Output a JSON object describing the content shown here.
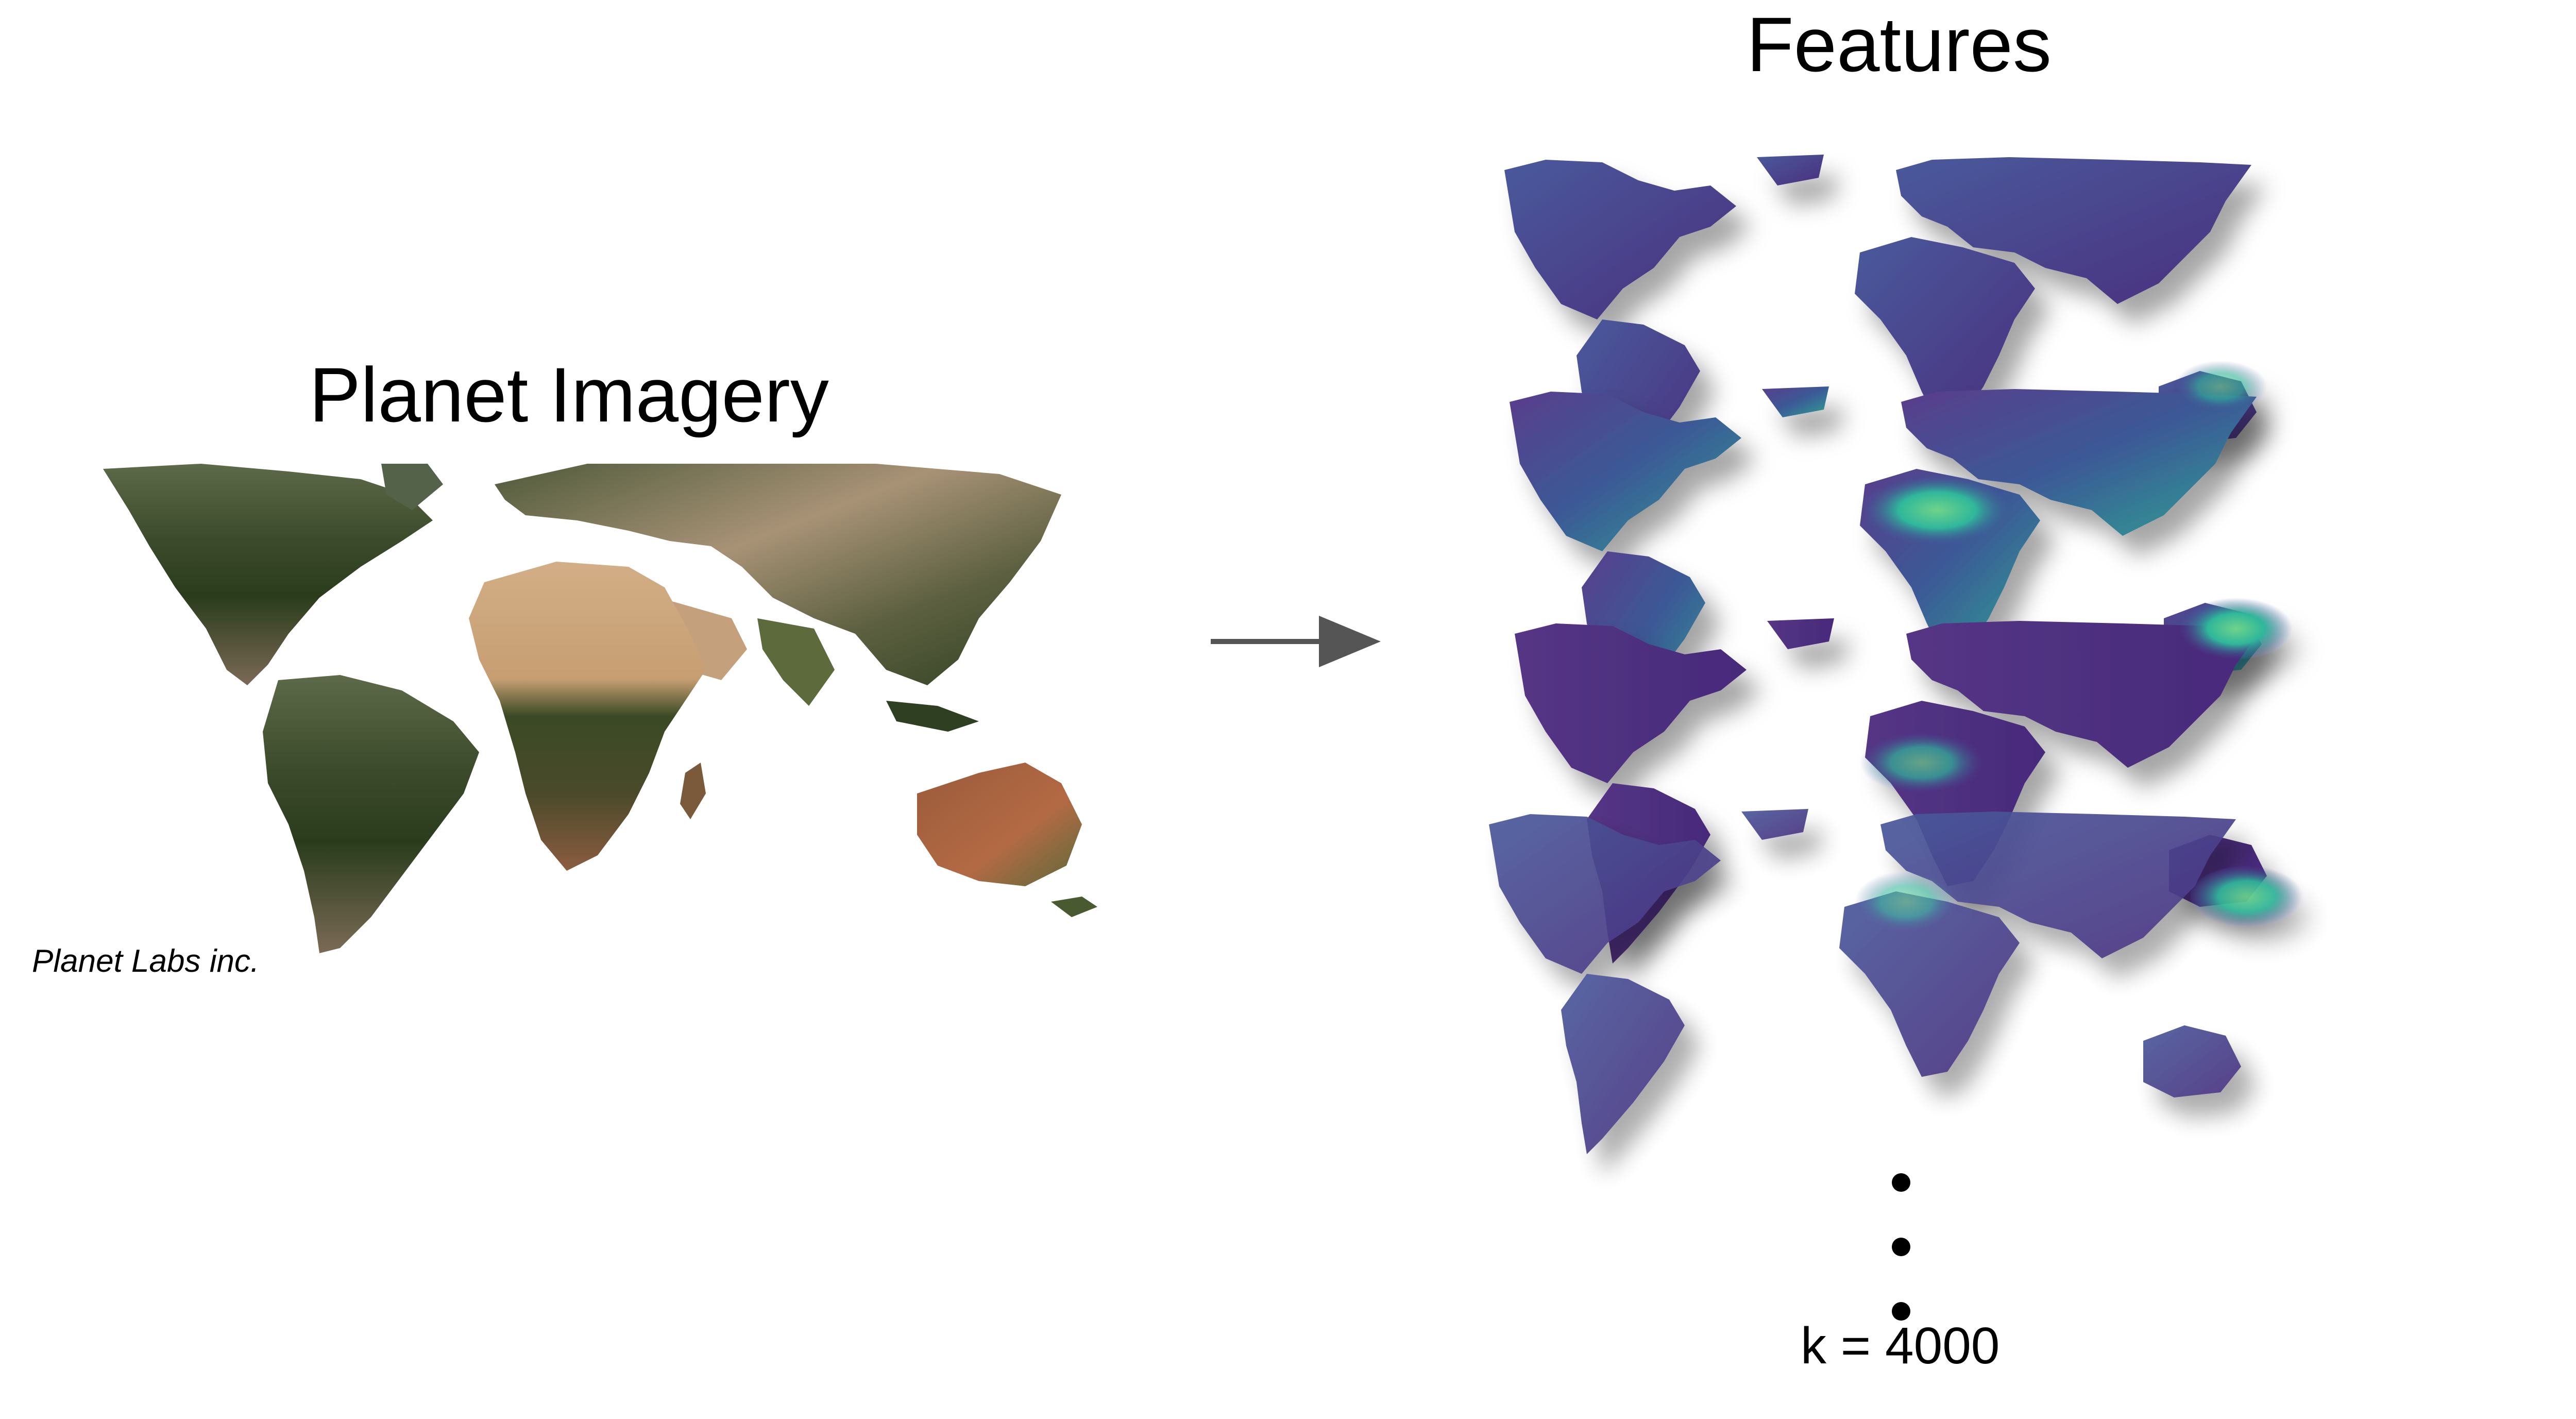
{
  "left": {
    "title": "Planet Imagery",
    "credit": "Planet Labs inc."
  },
  "right": {
    "title": "Features",
    "k_label": "k = 4000"
  },
  "colors": {
    "ocean": "#ffffff",
    "imagery_forest": "#2f3a1f",
    "imagery_desert": "#c9a47a",
    "imagery_soil": "#8b5a3c",
    "feature_low": "#4b2a7a",
    "feature_mid": "#3f4f98",
    "feature_high": "#2fb79a",
    "arrow": "#555555"
  },
  "icons": {
    "arrow": "right-arrow-icon",
    "ellipsis": "vertical-ellipsis-icon"
  }
}
